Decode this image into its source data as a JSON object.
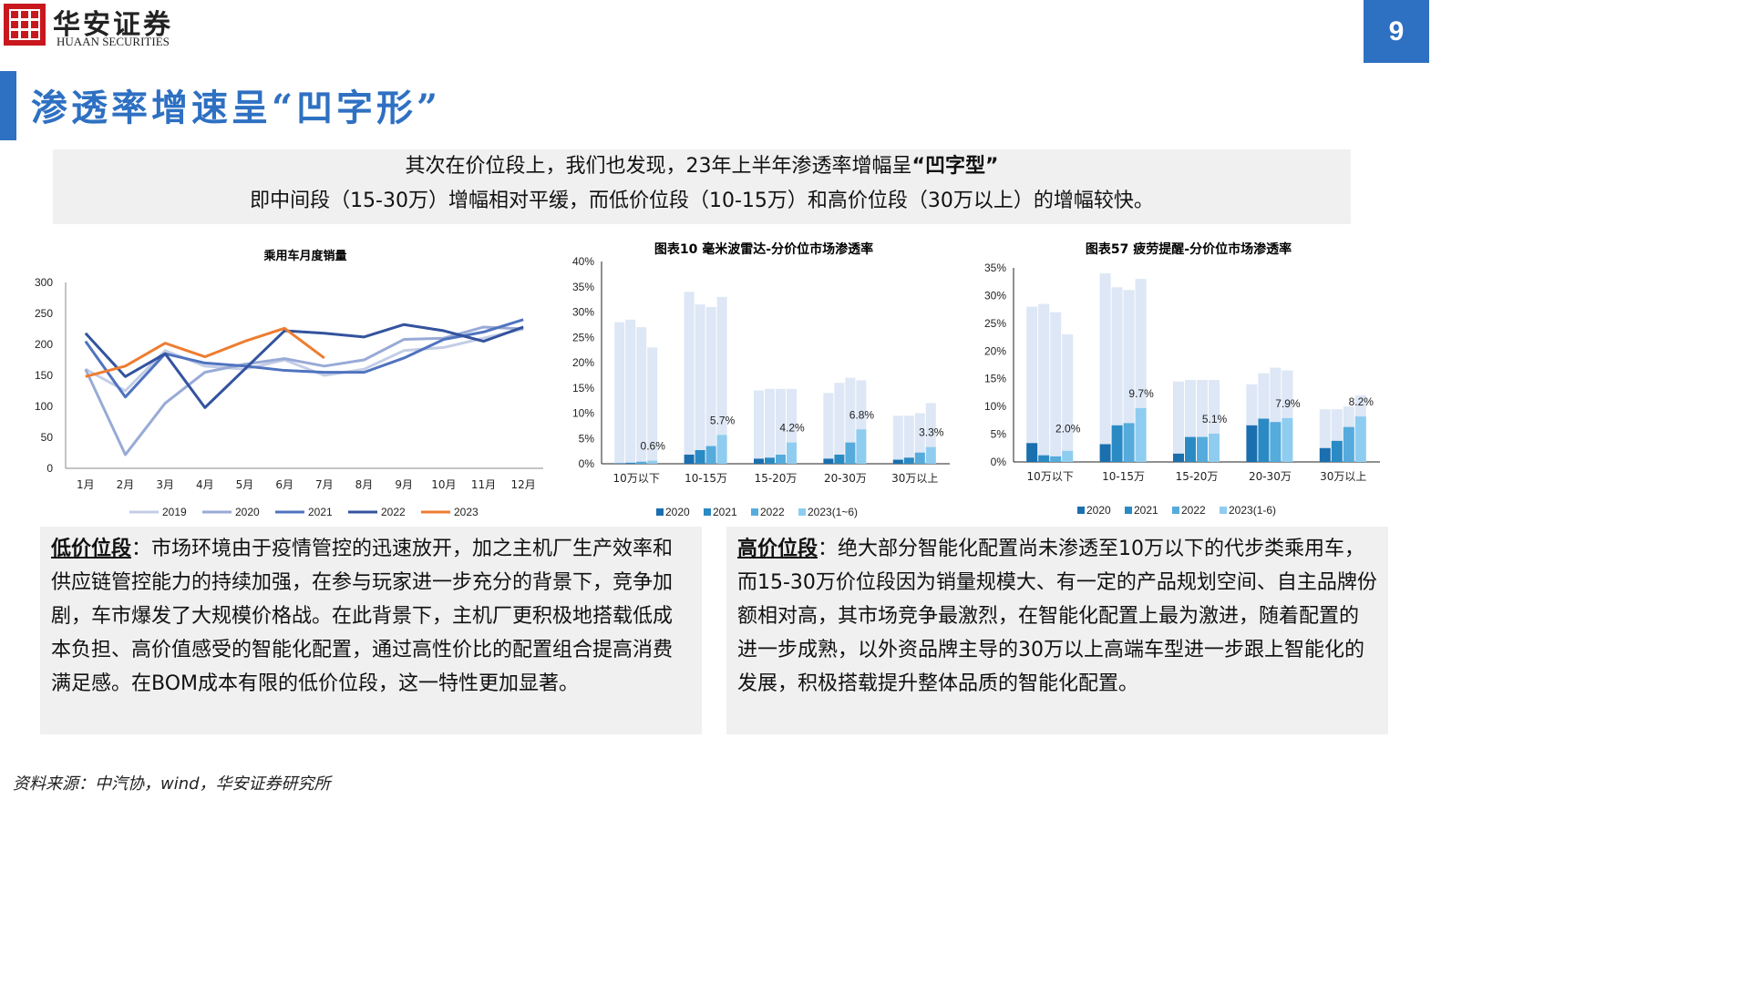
{
  "header": {
    "logo_text_cn": "华安证券",
    "logo_text_en": "HUAAN SECURITIES",
    "page_number": "9",
    "accent_color": "#2e70c2",
    "logo_color": "#c8181e"
  },
  "title": "渗透率增速呈“凹字形”",
  "intro": {
    "line1_prefix": "其次在价位段上，我们也发现，23年上半年渗透率增幅呈",
    "line1_bold": "“凹字型”",
    "line2": "即中间段（15-30万）增幅相对平缓，而低价位段（10-15万）和高价位段（30万以上）的增幅较快。"
  },
  "left_text": {
    "keyword": "低价位段",
    "body": "：市场环境由于疫情管控的迅速放开，加之主机厂生产效率和供应链管控能力的持续加强，在参与玩家进一步充分的背景下，竞争加剧，车市爆发了大规模价格战。在此背景下，主机厂更积极地搭载低成本负担、高价值感受的智能化配置，通过高性价比的配置组合提高消费满足感。在BOM成本有限的低价位段，这一特性更加显著。"
  },
  "right_text": {
    "keyword": "高价位段",
    "body": "：绝大部分智能化配置尚未渗透至10万以下的代步类乘用车，而15-30万价位段因为销量规模大、有一定的产品规划空间、自主品牌份额相对高，其市场竞争最激烈，在智能化配置上最为激进，随着配置的进一步成熟，以外资品牌主导的30万以上高端车型进一步跟上智能化的发展，积极搭载提升整体品质的智能化配置。"
  },
  "source": "资料来源：中汽协，wind，华安证券研究所",
  "chart_data": [
    {
      "type": "line",
      "title": "乘用车月度销量",
      "categories": [
        "1月",
        "2月",
        "3月",
        "4月",
        "5月",
        "6月",
        "7月",
        "8月",
        "9月",
        "10月",
        "11月",
        "12月"
      ],
      "ylim": [
        0,
        300
      ],
      "yticks": [
        0,
        50,
        100,
        150,
        200,
        250,
        300
      ],
      "legend_position": "bottom",
      "series": [
        {
          "name": "2019",
          "color": "#c3cde6",
          "values": [
            160,
            125,
            190,
            165,
            160,
            175,
            150,
            160,
            190,
            195,
            210,
            225
          ]
        },
        {
          "name": "2020",
          "color": "#98aad6",
          "values": [
            160,
            22,
            105,
            155,
            168,
            177,
            165,
            175,
            208,
            210,
            228,
            225
          ]
        },
        {
          "name": "2021",
          "color": "#4f73bf",
          "values": [
            205,
            115,
            185,
            170,
            165,
            158,
            155,
            155,
            178,
            208,
            220,
            240
          ]
        },
        {
          "name": "2022",
          "color": "#33539e",
          "values": [
            218,
            148,
            185,
            98,
            160,
            222,
            218,
            212,
            232,
            222,
            205,
            228
          ]
        },
        {
          "name": "2023",
          "color": "#ed7d31",
          "values": [
            148,
            165,
            202,
            180,
            205,
            226,
            178,
            null,
            null,
            null,
            null,
            null
          ]
        }
      ]
    },
    {
      "type": "bar",
      "title": "图表10 毫米波雷达-分价位市场渗透率",
      "categories": [
        "10万以下",
        "10-15万",
        "15-20万",
        "20-30万",
        "30万以上"
      ],
      "ylim": [
        0,
        0.4
      ],
      "yticks": [
        "0%",
        "5%",
        "10%",
        "15%",
        "20%",
        "25%",
        "30%",
        "35%",
        "40%"
      ],
      "legend_position": "bottom",
      "series": [
        {
          "name": "2020",
          "color": "#1a6fae",
          "values": [
            0.001,
            0.018,
            0.01,
            0.01,
            0.008
          ]
        },
        {
          "name": "2021",
          "color": "#2a8ac4",
          "values": [
            0.002,
            0.027,
            0.012,
            0.018,
            0.012
          ]
        },
        {
          "name": "2022",
          "color": "#55abdc",
          "values": [
            0.004,
            0.035,
            0.018,
            0.042,
            0.022
          ]
        },
        {
          "name": "2023(1~6)",
          "color": "#8fcdf0",
          "values": [
            0.006,
            0.057,
            0.042,
            0.068,
            0.033
          ]
        }
      ],
      "background_values": [
        [
          0.28,
          0.285,
          0.27,
          0.23
        ],
        [
          0.34,
          0.315,
          0.31,
          0.33
        ],
        [
          0.145,
          0.148,
          0.148,
          0.148
        ],
        [
          0.14,
          0.16,
          0.17,
          0.165
        ],
        [
          0.095,
          0.095,
          0.1,
          0.12
        ]
      ],
      "data_labels": [
        "0.6%",
        "5.7%",
        "4.2%",
        "6.8%",
        "3.3%"
      ]
    },
    {
      "type": "bar",
      "title": "图表57 疲劳提醒-分价位市场渗透率",
      "categories": [
        "10万以下",
        "10-15万",
        "15-20万",
        "20-30万",
        "30万以上"
      ],
      "ylim": [
        0,
        0.35
      ],
      "yticks": [
        "0%",
        "5%",
        "10%",
        "15%",
        "20%",
        "25%",
        "30%",
        "35%"
      ],
      "legend_position": "bottom",
      "series": [
        {
          "name": "2020",
          "color": "#1a6fae",
          "values": [
            0.034,
            0.032,
            0.015,
            0.066,
            0.025
          ]
        },
        {
          "name": "2021",
          "color": "#2a8ac4",
          "values": [
            0.012,
            0.066,
            0.045,
            0.078,
            0.038
          ]
        },
        {
          "name": "2022",
          "color": "#55abdc",
          "values": [
            0.01,
            0.07,
            0.045,
            0.072,
            0.063
          ]
        },
        {
          "name": "2023(1-6)",
          "color": "#8fcdf0",
          "values": [
            0.02,
            0.097,
            0.051,
            0.079,
            0.082
          ]
        }
      ],
      "background_values": [
        [
          0.28,
          0.285,
          0.27,
          0.23
        ],
        [
          0.34,
          0.315,
          0.31,
          0.33
        ],
        [
          0.145,
          0.148,
          0.148,
          0.148
        ],
        [
          0.14,
          0.16,
          0.17,
          0.165
        ],
        [
          0.095,
          0.095,
          0.1,
          0.12
        ]
      ],
      "data_labels": [
        "2.0%",
        "9.7%",
        "5.1%",
        "7.9%",
        "8.2%"
      ]
    }
  ]
}
